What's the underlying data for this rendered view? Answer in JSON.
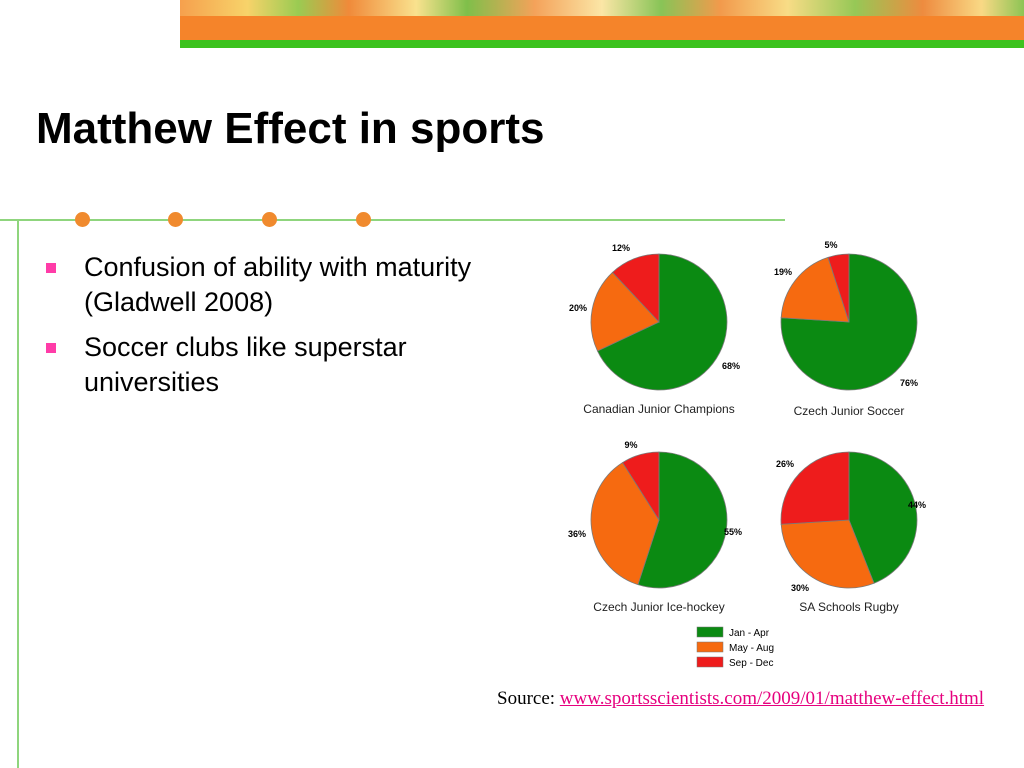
{
  "title": "Matthew Effect in sports",
  "bullets": [
    "Confusion of ability with maturity (Gladwell 2008)",
    "Soccer clubs like superstar universities"
  ],
  "legend": [
    {
      "label": "Jan - Apr",
      "color": "#0b8a12"
    },
    {
      "label": "May - Aug",
      "color": "#f66a10"
    },
    {
      "label": "Sep - Dec",
      "color": "#ee1c1c"
    }
  ],
  "chart_data": [
    {
      "type": "pie",
      "title": "Canadian Junior Champions",
      "labels": [
        "Jan - Apr",
        "May - Aug",
        "Sep - Dec"
      ],
      "values": [
        68,
        20,
        12
      ],
      "value_labels": [
        "68%",
        "20%",
        "12%"
      ]
    },
    {
      "type": "pie",
      "title": "Czech Junior Soccer",
      "labels": [
        "Jan - Apr",
        "May - Aug",
        "Sep - Dec"
      ],
      "values": [
        76,
        19,
        5
      ],
      "value_labels": [
        "76%",
        "19%",
        "5%"
      ]
    },
    {
      "type": "pie",
      "title": "Czech Junior Ice-hockey",
      "labels": [
        "Jan - Apr",
        "May - Aug",
        "Sep - Dec"
      ],
      "values": [
        55,
        36,
        9
      ],
      "value_labels": [
        "55%",
        "36%",
        "9%"
      ]
    },
    {
      "type": "pie",
      "title": "SA Schools Rugby",
      "labels": [
        "Jan - Apr",
        "May - Aug",
        "Sep - Dec"
      ],
      "values": [
        44,
        30,
        26
      ],
      "value_labels": [
        "44%",
        "30%",
        "26%"
      ]
    }
  ],
  "source": {
    "prefix": "Source: ",
    "link_text": "www.sportsscientists.com/2009/01/matthew-effect.html"
  }
}
